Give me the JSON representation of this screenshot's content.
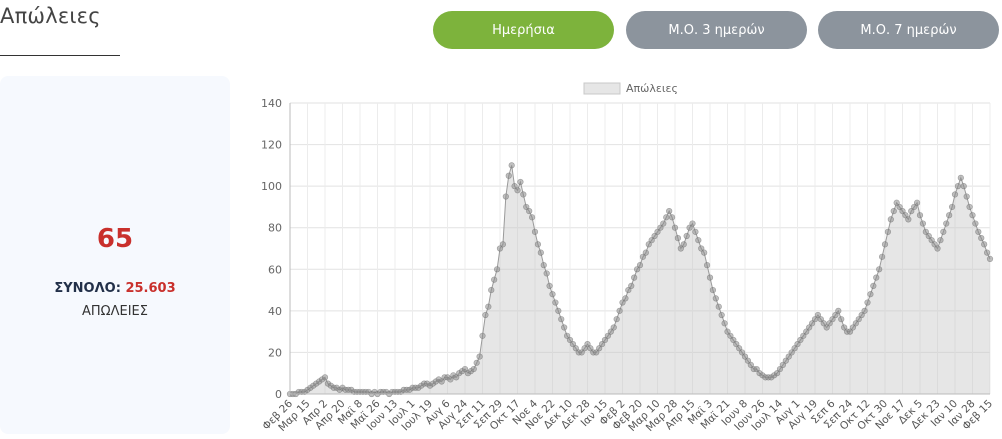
{
  "header": {
    "title": "Απώλειες"
  },
  "tabs": [
    {
      "label": "Ημερήσια",
      "active": true
    },
    {
      "label": "Μ.Ο. 3 ημερών",
      "active": false
    },
    {
      "label": "Μ.Ο. 7 ημερών",
      "active": false
    }
  ],
  "colors": {
    "active_tab": "#7db33c",
    "inactive_tab": "#8c949d",
    "value_red": "#c9302c",
    "label_navy": "#223049",
    "card_bg": "#f6f9fe"
  },
  "summary": {
    "value": "65",
    "total_label": "ΣΥΝΟΛΟ:",
    "total_value": "25.603",
    "unit": "ΑΠΩΛΕΙΕΣ"
  },
  "chart_data": {
    "type": "area",
    "legend": {
      "label": "Απώλειες",
      "position": "top"
    },
    "yticks": [
      "0",
      "20",
      "40",
      "60",
      "80",
      "100",
      "120",
      "140"
    ],
    "ylim": [
      0,
      140
    ],
    "grid": true,
    "xlabels": [
      "Φεβ 26",
      "Μαρ 15",
      "Απρ 2",
      "Απρ 20",
      "Μαϊ 8",
      "Μαϊ 26",
      "Ιουν 13",
      "Ιουλ 1",
      "Ιουλ 19",
      "Αυγ 6",
      "Αυγ 24",
      "Σεπ 11",
      "Σεπ 29",
      "Οκτ 17",
      "Νοε 4",
      "Νοε 22",
      "Δεκ 10",
      "Δεκ 28",
      "Ιαν 15",
      "Φεβ 2",
      "Φεβ 20",
      "Μαρ 10",
      "Μαρ 28",
      "Απρ 15",
      "Μαϊ 3",
      "Μαϊ 21",
      "Ιουν 8",
      "Ιουν 26",
      "Ιουλ 14",
      "Αυγ 1",
      "Αυγ 19",
      "Σεπ 6",
      "Σεπ 24",
      "Οκτ 12",
      "Οκτ 30",
      "Νοε 17",
      "Δεκ 5",
      "Δεκ 23",
      "Ιαν 10",
      "Ιαν 28",
      "Φεβ 15"
    ],
    "values": [
      0,
      0,
      0,
      1,
      1,
      1,
      2,
      3,
      4,
      5,
      6,
      7,
      8,
      5,
      4,
      3,
      3,
      2,
      3,
      2,
      2,
      2,
      1,
      1,
      1,
      1,
      1,
      1,
      0,
      1,
      0,
      1,
      1,
      1,
      0,
      1,
      1,
      1,
      1,
      2,
      2,
      2,
      3,
      3,
      3,
      4,
      5,
      5,
      4,
      5,
      6,
      7,
      6,
      8,
      8,
      7,
      9,
      8,
      10,
      11,
      12,
      10,
      11,
      12,
      15,
      18,
      28,
      38,
      42,
      50,
      55,
      60,
      70,
      72,
      95,
      105,
      110,
      100,
      98,
      102,
      96,
      90,
      88,
      85,
      78,
      72,
      68,
      62,
      58,
      52,
      48,
      44,
      40,
      36,
      32,
      28,
      26,
      24,
      22,
      20,
      20,
      22,
      24,
      22,
      20,
      20,
      22,
      24,
      26,
      28,
      30,
      32,
      36,
      40,
      44,
      46,
      50,
      52,
      56,
      60,
      62,
      66,
      68,
      72,
      74,
      76,
      78,
      80,
      82,
      85,
      88,
      85,
      80,
      75,
      70,
      72,
      76,
      80,
      82,
      78,
      74,
      70,
      68,
      62,
      56,
      50,
      46,
      42,
      38,
      34,
      30,
      28,
      26,
      24,
      22,
      20,
      18,
      16,
      14,
      12,
      12,
      10,
      9,
      8,
      8,
      8,
      9,
      10,
      12,
      14,
      16,
      18,
      20,
      22,
      24,
      26,
      28,
      30,
      32,
      34,
      36,
      38,
      36,
      34,
      32,
      34,
      36,
      38,
      40,
      36,
      32,
      30,
      30,
      32,
      34,
      36,
      38,
      40,
      44,
      48,
      52,
      56,
      60,
      66,
      72,
      78,
      84,
      88,
      92,
      90,
      88,
      86,
      84,
      88,
      90,
      92,
      86,
      82,
      78,
      76,
      74,
      72,
      70,
      74,
      78,
      82,
      86,
      90,
      96,
      100,
      104,
      100,
      95,
      90,
      86,
      82,
      78,
      75,
      72,
      68,
      65
    ]
  }
}
